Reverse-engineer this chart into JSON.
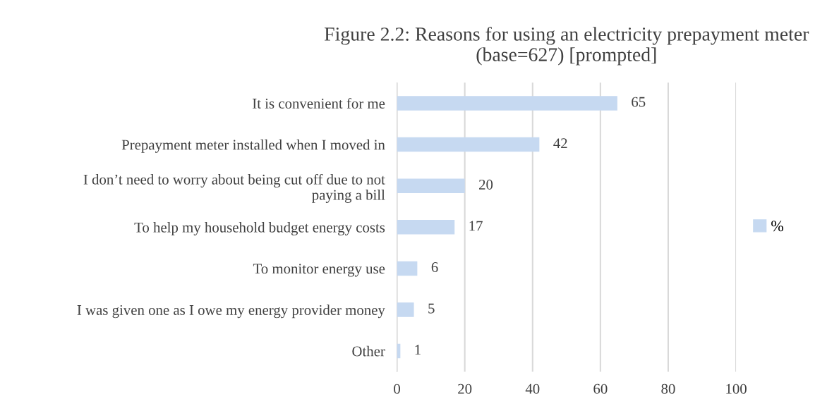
{
  "chart_data": {
    "type": "bar",
    "orientation": "horizontal",
    "title": "Figure 2.2: Reasons for using an electricity prepayment meter\n(base=627) [prompted]",
    "categories": [
      "It is convenient for me",
      "Prepayment meter installed when I moved in",
      "I don’t need to worry about being cut off due to not\npaying a bill",
      "To help my household budget energy costs",
      "To monitor energy use",
      "I was given one as I owe my energy provider money",
      "Other"
    ],
    "series": [
      {
        "name": "%",
        "color": "#c6d9f1",
        "values": [
          65,
          42,
          20,
          17,
          6,
          5,
          1
        ]
      }
    ],
    "xlim": [
      0,
      100
    ],
    "xticks": [
      0,
      20,
      40,
      60,
      80,
      100
    ],
    "grid": "x",
    "legend": "right",
    "data_labels": true
  }
}
